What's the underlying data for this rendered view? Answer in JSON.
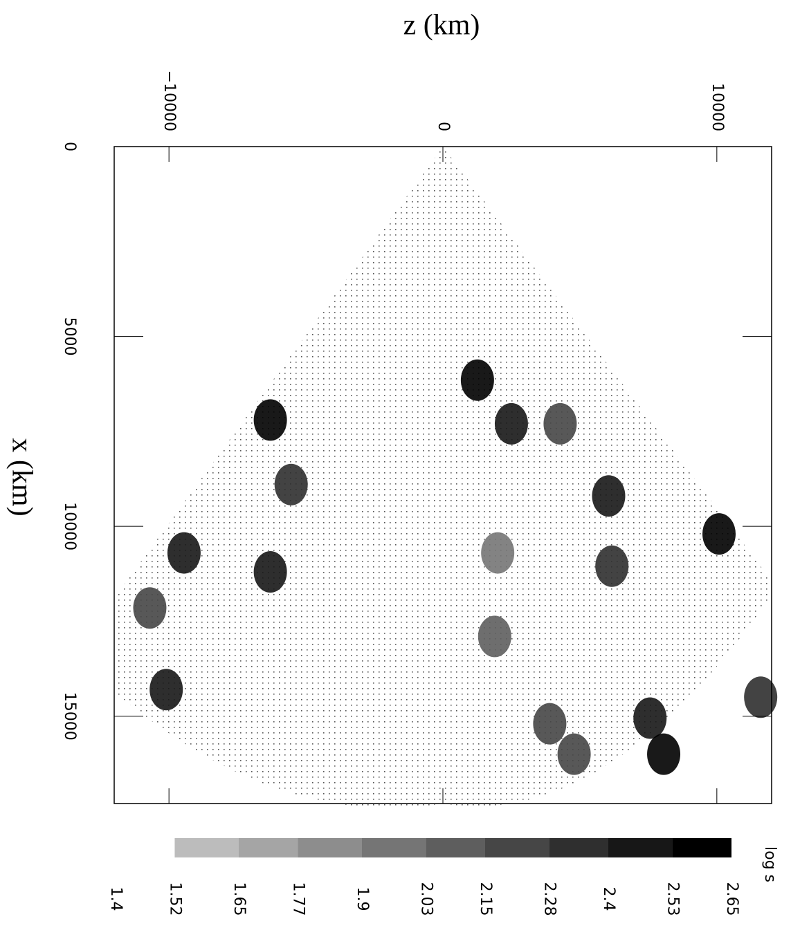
{
  "chart_data": {
    "type": "heatmap",
    "xlabel": "z (km)",
    "ylabel": "x (km)",
    "xlim": [
      -12000,
      12000
    ],
    "xticks": [
      {
        "value": -10000,
        "label": "−10000"
      },
      0,
      10000
    ],
    "ylim": [
      0,
      17300
    ],
    "yticks": [
      0,
      5000,
      10000,
      15000
    ],
    "blobs": {
      "z": [
        -6300,
        -9450,
        -6300,
        -10100,
        -5540,
        2500,
        1260,
        4280,
        6050,
        10080,
        6170,
        1890,
        7560,
        8060,
        3900,
        4790,
        11600,
        2000,
        -10700
      ],
      "x": [
        7200,
        10700,
        11200,
        14300,
        8900,
        7300,
        6150,
        7300,
        9200,
        10200,
        11050,
        12900,
        15050,
        16000,
        15200,
        16000,
        14500,
        10700,
        12150
      ],
      "values": [
        2.65,
        2.53,
        2.53,
        2.53,
        2.4,
        2.53,
        2.65,
        2.28,
        2.53,
        2.65,
        2.4,
        2.15,
        2.53,
        2.65,
        2.28,
        2.28,
        2.4,
        2.03,
        2.28
      ]
    },
    "colorbar": {
      "label": "log s",
      "levels": [
        1.4,
        1.52,
        1.65,
        1.77,
        1.9,
        2.03,
        2.15,
        2.28,
        2.4,
        2.53,
        2.65
      ]
    }
  }
}
